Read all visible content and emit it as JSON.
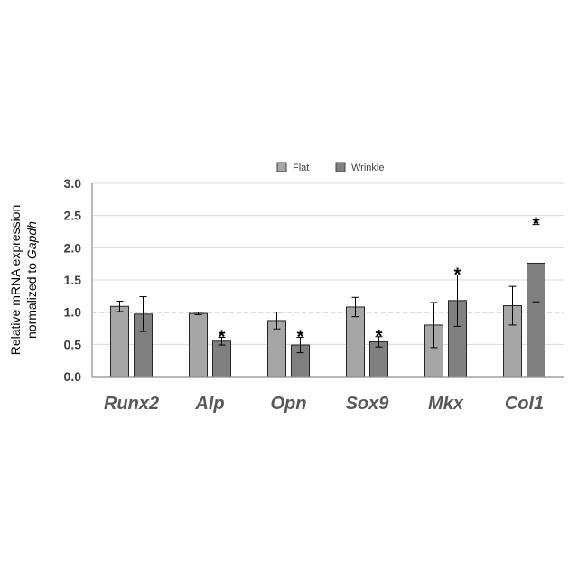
{
  "chart_data": {
    "type": "bar",
    "categories": [
      "Runx2",
      "Alp",
      "Opn",
      "Sox9",
      "Mkx",
      "Col1"
    ],
    "series": [
      {
        "name": "Flat",
        "color": "#a6a6a6",
        "values": [
          1.09,
          0.98,
          0.87,
          1.08,
          0.8,
          1.1
        ],
        "errors": [
          0.08,
          0.02,
          0.13,
          0.15,
          0.35,
          0.3
        ]
      },
      {
        "name": "Wrinkle",
        "color": "#808080",
        "values": [
          0.97,
          0.55,
          0.49,
          0.54,
          1.18,
          1.76
        ],
        "errors": [
          0.27,
          0.06,
          0.12,
          0.08,
          0.4,
          0.6
        ]
      }
    ],
    "significance": [
      [
        false,
        false
      ],
      [
        false,
        true
      ],
      [
        false,
        true
      ],
      [
        false,
        true
      ],
      [
        false,
        true
      ],
      [
        false,
        true
      ]
    ],
    "significance_marker": "*",
    "reference_line": 1.0,
    "ylim": [
      0,
      3
    ],
    "yticks": [
      "0.0",
      "0.5",
      "1.0",
      "1.5",
      "2.0",
      "2.5",
      "3.0"
    ],
    "ylabel_line1": "Relative mRNA expression",
    "ylabel_line2_prefix": "normalized to ",
    "ylabel_line2_gene": "Gapdh",
    "legend_position": "top-center",
    "grid": true
  }
}
